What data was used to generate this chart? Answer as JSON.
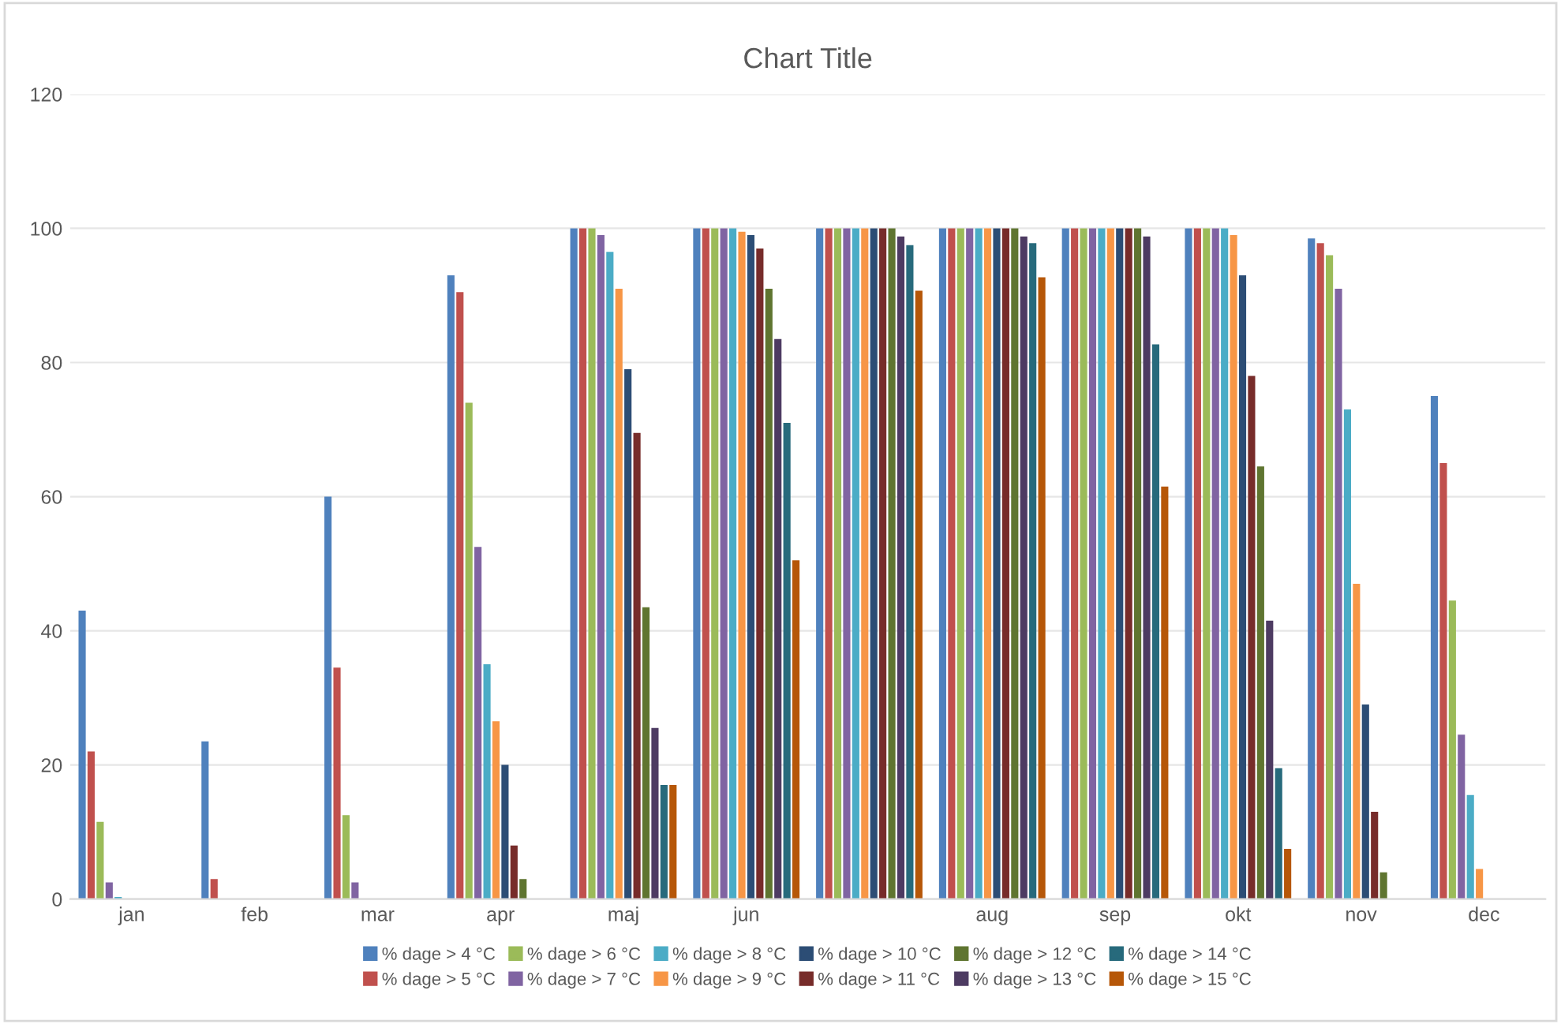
{
  "chart_data": {
    "type": "bar",
    "title": "Chart Title",
    "categories": [
      "jan",
      "feb",
      "mar",
      "apr",
      "maj",
      "jun",
      null,
      "aug",
      "sep",
      "okt",
      "nov",
      "dec"
    ],
    "series": [
      {
        "name": "% dage > 4 °C",
        "color": "#4f81bd",
        "values": [
          43,
          23.5,
          60,
          93,
          100,
          100,
          100,
          100,
          100,
          100,
          98.5,
          75
        ]
      },
      {
        "name": "% dage > 5 °C",
        "color": "#c0504d",
        "values": [
          22,
          3,
          34.5,
          90.5,
          100,
          100,
          100,
          100,
          100,
          100,
          97.8,
          65
        ]
      },
      {
        "name": "% dage > 6 °C",
        "color": "#9bbb59",
        "values": [
          11.5,
          0,
          12.5,
          74,
          100,
          100,
          100,
          100,
          100,
          100,
          96,
          44.5
        ]
      },
      {
        "name": "% dage > 7 °C",
        "color": "#8064a2",
        "values": [
          2.5,
          0,
          2.5,
          52.5,
          99,
          100,
          100,
          100,
          100,
          100,
          91,
          24.5
        ]
      },
      {
        "name": "% dage > 8 °C",
        "color": "#4bacc6",
        "values": [
          0.3,
          0,
          0,
          35,
          96.5,
          100,
          100,
          100,
          100,
          100,
          73,
          15.5
        ]
      },
      {
        "name": "% dage > 9 °C",
        "color": "#f79646",
        "values": [
          0,
          0,
          0,
          26.5,
          91,
          99.5,
          100,
          100,
          100,
          99,
          47,
          4.5
        ]
      },
      {
        "name": "% dage > 10 °C",
        "color": "#2c4d75",
        "values": [
          0,
          0,
          0,
          20,
          79,
          99,
          100,
          100,
          100,
          93,
          29,
          0
        ]
      },
      {
        "name": "% dage > 11 °C",
        "color": "#772c2a",
        "values": [
          0,
          0,
          0,
          8,
          69.5,
          97,
          100,
          100,
          100,
          78,
          13,
          0
        ]
      },
      {
        "name": "% dage > 12 °C",
        "color": "#5f7530",
        "values": [
          0,
          0,
          0,
          3,
          43.5,
          91,
          100,
          100,
          100,
          64.5,
          4,
          0
        ]
      },
      {
        "name": "% dage > 13 °C",
        "color": "#4d3b62",
        "values": [
          0,
          0,
          0,
          0,
          25.5,
          83.5,
          98.8,
          98.8,
          98.8,
          41.5,
          0,
          0
        ]
      },
      {
        "name": "% dage > 14 °C",
        "color": "#276a7c",
        "values": [
          0,
          0,
          0,
          0,
          17,
          71,
          97.5,
          97.8,
          82.7,
          19.5,
          0,
          0
        ]
      },
      {
        "name": "% dage > 15 °C",
        "color": "#b65708",
        "values": [
          0,
          0,
          0,
          0,
          17,
          50.5,
          90.7,
          92.7,
          61.5,
          7.5,
          0,
          0
        ]
      }
    ],
    "ylim": [
      0,
      120
    ],
    "yticks": [
      0,
      20,
      40,
      60,
      80,
      100,
      120
    ],
    "grid": "y",
    "legend": "bottom"
  }
}
